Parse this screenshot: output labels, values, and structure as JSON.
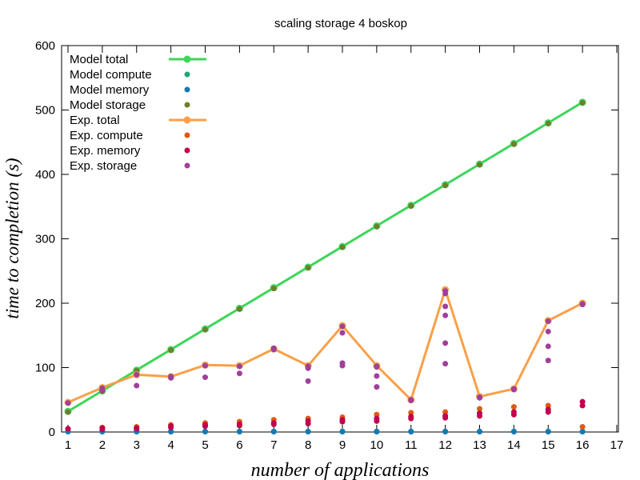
{
  "chart_data": {
    "type": "scatter",
    "title": "scaling storage 4 boskop",
    "xlabel": "number of applications",
    "ylabel": "time to completion (s)",
    "xlim": [
      1,
      17
    ],
    "ylim": [
      0,
      600
    ],
    "xticks": [
      "1",
      "2",
      "3",
      "4",
      "5",
      "6",
      "7",
      "8",
      "9",
      "10",
      "11",
      "12",
      "13",
      "14",
      "15",
      "16",
      "17"
    ],
    "yticks": [
      "0",
      "100",
      "200",
      "300",
      "400",
      "500",
      "600"
    ],
    "grid": false,
    "legend_position": "top-left",
    "series": [
      {
        "name": "Model total",
        "style": "linepoints",
        "color": "#3dd65a",
        "x": [
          1,
          2,
          3,
          4,
          5,
          6,
          7,
          8,
          9,
          10,
          11,
          12,
          13,
          14,
          15,
          16
        ],
        "y": [
          32,
          64,
          96,
          128,
          160,
          192,
          224,
          256,
          288,
          320,
          352,
          384,
          416,
          448,
          480,
          512
        ]
      },
      {
        "name": "Model compute",
        "style": "points",
        "color": "#1aa87a",
        "x": [
          1,
          2,
          3,
          4,
          5,
          6,
          7,
          8,
          9,
          10,
          11,
          12,
          13,
          14,
          15,
          16
        ],
        "y": [
          1,
          1,
          1,
          1,
          1,
          1,
          1,
          1,
          1,
          1,
          1,
          1,
          1,
          1,
          1,
          1
        ]
      },
      {
        "name": "Model memory",
        "style": "points",
        "color": "#1479b4",
        "x": [
          1,
          2,
          3,
          4,
          5,
          6,
          7,
          8,
          9,
          10,
          11,
          12,
          13,
          14,
          15,
          16
        ],
        "y": [
          0.5,
          0.5,
          0.5,
          0.5,
          0.5,
          0.5,
          0.5,
          0.5,
          0.5,
          0.5,
          0.5,
          0.5,
          0.5,
          0.5,
          0.5,
          0.5
        ]
      },
      {
        "name": "Model storage",
        "style": "points",
        "color": "#6e7f2b",
        "x": [
          1,
          2,
          3,
          4,
          5,
          6,
          7,
          8,
          9,
          10,
          11,
          12,
          13,
          14,
          15,
          16
        ],
        "y": [
          31,
          63,
          95,
          127,
          159,
          191,
          223,
          255,
          287,
          319,
          351,
          383,
          415,
          447,
          479,
          511
        ]
      },
      {
        "name": "Exp. total",
        "style": "linepoints",
        "color": "#f9a048",
        "x": [
          1,
          2,
          3,
          4,
          5,
          6,
          7,
          8,
          9,
          10,
          11,
          12,
          13,
          14,
          15,
          16
        ],
        "y": [
          46,
          69,
          89,
          86,
          104,
          103,
          129,
          103,
          165,
          103,
          50,
          221,
          55,
          67,
          173,
          200
        ]
      },
      {
        "name": "Exp. compute",
        "style": "points",
        "color": "#e05a10",
        "x": [
          1,
          2,
          3,
          4,
          5,
          6,
          7,
          8,
          9,
          10,
          11,
          12,
          13,
          14,
          15,
          16
        ],
        "y": [
          5,
          7,
          8,
          11,
          14,
          16,
          19,
          21,
          23,
          27,
          30,
          31,
          36,
          39,
          41,
          8
        ]
      },
      {
        "name": "Exp. memory",
        "style": "points",
        "color": "#c2004f",
        "x": [
          1,
          2,
          2,
          3,
          3,
          4,
          4,
          5,
          5,
          6,
          6,
          7,
          7,
          8,
          8,
          9,
          9,
          10,
          10,
          11,
          11,
          12,
          12,
          13,
          13,
          14,
          14,
          15,
          15,
          16,
          16
        ],
        "y": [
          5,
          4,
          6,
          5,
          6,
          7,
          9,
          9,
          11,
          10,
          12,
          12,
          14,
          13,
          17,
          16,
          19,
          17,
          21,
          21,
          24,
          22,
          25,
          25,
          29,
          27,
          31,
          31,
          35,
          41,
          47
        ]
      },
      {
        "name": "Exp. storage",
        "style": "points",
        "color": "#a0409a",
        "x": [
          1,
          2,
          2,
          3,
          3,
          4,
          4,
          5,
          5,
          6,
          6,
          7,
          7,
          8,
          8,
          8,
          9,
          9,
          9,
          9,
          10,
          10,
          10,
          10,
          11,
          11,
          12,
          12,
          12,
          12,
          12,
          12,
          13,
          13,
          14,
          14,
          15,
          15,
          15,
          15,
          16,
          16
        ],
        "y": [
          45,
          65,
          68,
          72,
          89,
          84,
          86,
          85,
          103,
          91,
          102,
          128,
          130,
          79,
          99,
          102,
          103,
          107,
          154,
          164,
          70,
          87,
          101,
          102,
          49,
          50,
          106,
          138,
          181,
          195,
          215,
          219,
          53,
          54,
          66,
          67,
          111,
          133,
          156,
          172,
          198,
          199
        ]
      }
    ]
  }
}
